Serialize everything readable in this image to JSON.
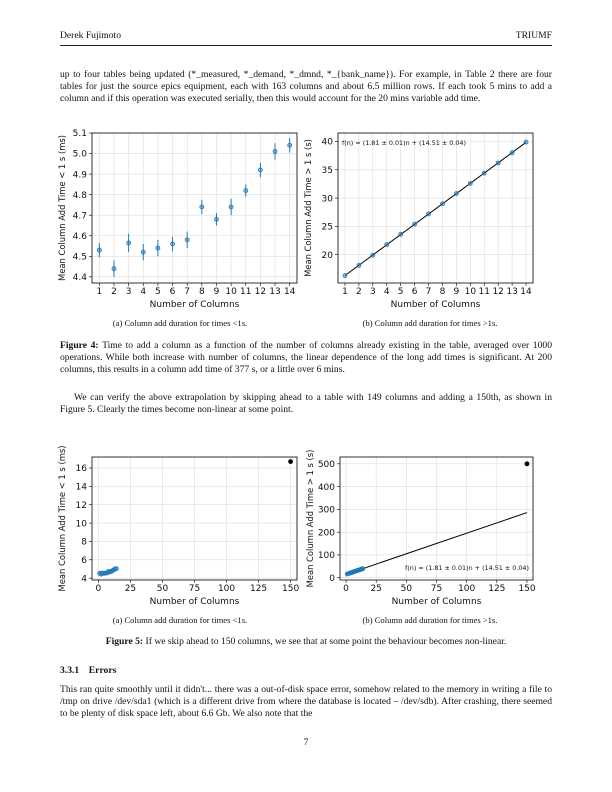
{
  "header": {
    "left": "Derek Fujimoto",
    "right": "TRIUMF"
  },
  "paragraphs": [
    "up to four tables being updated (*_measured, *_demand, *_dmnd, *_{bank_name}). For example, in Table 2 there are four tables for just the source epics equipment, each with 163 columns and about 6.5 million rows. If each took 5 mins to add a column and if this operation was executed serially, then this would account for the 20 mins variable add time.",
    "We can verify the above extrapolation by skipping ahead to a table with 149 columns and adding a 150th, as shown in Figure 5. Clearly the times become non-linear at some point.",
    "This ran quite smoothly until it didn't... there was a out-of-disk space error, somehow related to the memory in writing a file to /tmp on drive /dev/sda1 (which is a different drive from where the database is located – /dev/sdb). After crashing, there seemed to be plenty of disk space left, about 6.6 Gb. We also note that the"
  ],
  "subcaptions": [
    "(a) Column add duration for times <1s.",
    "(b) Column add duration for times >1s.",
    "(a) Column add duration for times <1s.",
    "(b) Column add duration for times >1s."
  ],
  "figure_captions": [
    {
      "label": "Figure 4:",
      "text": "Time to add a column as a function of the number of columns already existing in the table, averaged over 1000 operations. While both increase with number of columns, the linear dependence of the long add times is significant. At 200 columns, this results in a column add time of 377 s, or a little over 6 mins."
    },
    {
      "label": "Figure 5:",
      "text": "If we skip ahead to 150 columns, we see that at some point the behaviour becomes non-linear."
    }
  ],
  "section": {
    "number": "3.3.1",
    "title": "Errors"
  },
  "page_number": "7",
  "chart_data": [
    {
      "type": "scatter",
      "xlabel": "Number of Columns",
      "ylabel": "Mean Column Add Time < 1 s (ms)",
      "grid": true,
      "xlim": [
        0.5,
        14.5
      ],
      "xticks": [
        1,
        2,
        3,
        4,
        5,
        6,
        7,
        8,
        9,
        10,
        11,
        12,
        13,
        14
      ],
      "ylim": [
        4.37,
        5.1
      ],
      "yticks": [
        4.4,
        4.5,
        4.6,
        4.7,
        4.8,
        4.9,
        {
          "value": 5,
          "label": "5.0"
        },
        5.1
      ],
      "series": [
        {
          "color": "#1f77b4",
          "x": [
            1,
            2,
            3,
            4,
            5,
            6,
            7,
            8,
            9,
            10,
            11,
            12,
            13,
            14
          ],
          "values": [
            4.53,
            4.44,
            4.565,
            4.52,
            4.54,
            4.56,
            4.58,
            4.74,
            4.68,
            4.74,
            4.82,
            4.92,
            5.01,
            5.04
          ],
          "errors": [
            0.035,
            0.04,
            0.045,
            0.04,
            0.04,
            0.035,
            0.04,
            0.035,
            0.03,
            0.04,
            0.03,
            0.035,
            0.04,
            0.035
          ]
        }
      ]
    },
    {
      "type": "scatter",
      "xlabel": "Number of Columns",
      "ylabel": "Mean Column Add Time > 1 s (s)",
      "grid": true,
      "xlim": [
        0.5,
        14.5
      ],
      "xticks": [
        1,
        2,
        3,
        4,
        5,
        6,
        7,
        8,
        9,
        10,
        11,
        12,
        13,
        14
      ],
      "ylim": [
        15,
        41.5
      ],
      "yticks": [
        20,
        25,
        30,
        35,
        40
      ],
      "annotation": "f(n) = (1.81 ± 0.01)n + (14.51 ± 0.04)",
      "annotation_corner": "upper left",
      "series": [
        {
          "color": "#1f77b4",
          "x": [
            1,
            2,
            3,
            4,
            5,
            6,
            7,
            8,
            9,
            10,
            11,
            12,
            13,
            14
          ],
          "values": [
            16.3,
            18.1,
            19.9,
            21.8,
            23.6,
            25.4,
            27.2,
            29.0,
            30.8,
            32.6,
            34.4,
            36.2,
            38.0,
            39.9
          ]
        }
      ],
      "lines": [
        {
          "color": "#000000",
          "x": [
            1,
            14
          ],
          "y": [
            16.32,
            39.85
          ]
        }
      ]
    },
    {
      "type": "scatter",
      "xlabel": "Number of Columns",
      "ylabel": "Mean Column Add Time < 1 s (ms)",
      "grid": true,
      "xlim": [
        -5,
        155
      ],
      "xticks": [
        0,
        25,
        50,
        75,
        100,
        125,
        150
      ],
      "ylim": [
        3.8,
        17.2
      ],
      "yticks": [
        4,
        6,
        8,
        10,
        12,
        14,
        16
      ],
      "series": [
        {
          "color": "#1f77b4",
          "x": [
            1,
            2,
            3,
            4,
            5,
            6,
            7,
            8,
            9,
            10,
            11,
            12,
            13,
            14
          ],
          "values": [
            4.53,
            4.44,
            4.565,
            4.52,
            4.54,
            4.56,
            4.58,
            4.74,
            4.68,
            4.74,
            4.82,
            4.92,
            5.01,
            5.04
          ]
        },
        {
          "color": "#000000",
          "x": [
            150
          ],
          "values": [
            16.7
          ]
        }
      ]
    },
    {
      "type": "scatter",
      "xlabel": "Number of Columns",
      "ylabel": "Mean Column Add Time > 1 s (s)",
      "grid": true,
      "xlim": [
        -5,
        155
      ],
      "xticks": [
        0,
        25,
        50,
        75,
        100,
        125,
        150
      ],
      "ylim": [
        -10,
        530
      ],
      "yticks": [
        0,
        100,
        200,
        300,
        400,
        500
      ],
      "annotation": "f(n) = (1.81 ± 0.01)n + (14.51 ± 0.04)",
      "annotation_corner": "lower right",
      "series": [
        {
          "color": "#1f77b4",
          "x": [
            1,
            2,
            3,
            4,
            5,
            6,
            7,
            8,
            9,
            10,
            11,
            12,
            13,
            14
          ],
          "values": [
            16.3,
            18.1,
            19.9,
            21.8,
            23.6,
            25.4,
            27.2,
            29.0,
            30.8,
            32.6,
            34.4,
            36.2,
            38.0,
            39.9
          ]
        },
        {
          "color": "#000000",
          "x": [
            150
          ],
          "values": [
            500
          ]
        }
      ],
      "lines": [
        {
          "color": "#000000",
          "x": [
            0,
            150
          ],
          "y": [
            14.51,
            286
          ]
        }
      ]
    }
  ]
}
